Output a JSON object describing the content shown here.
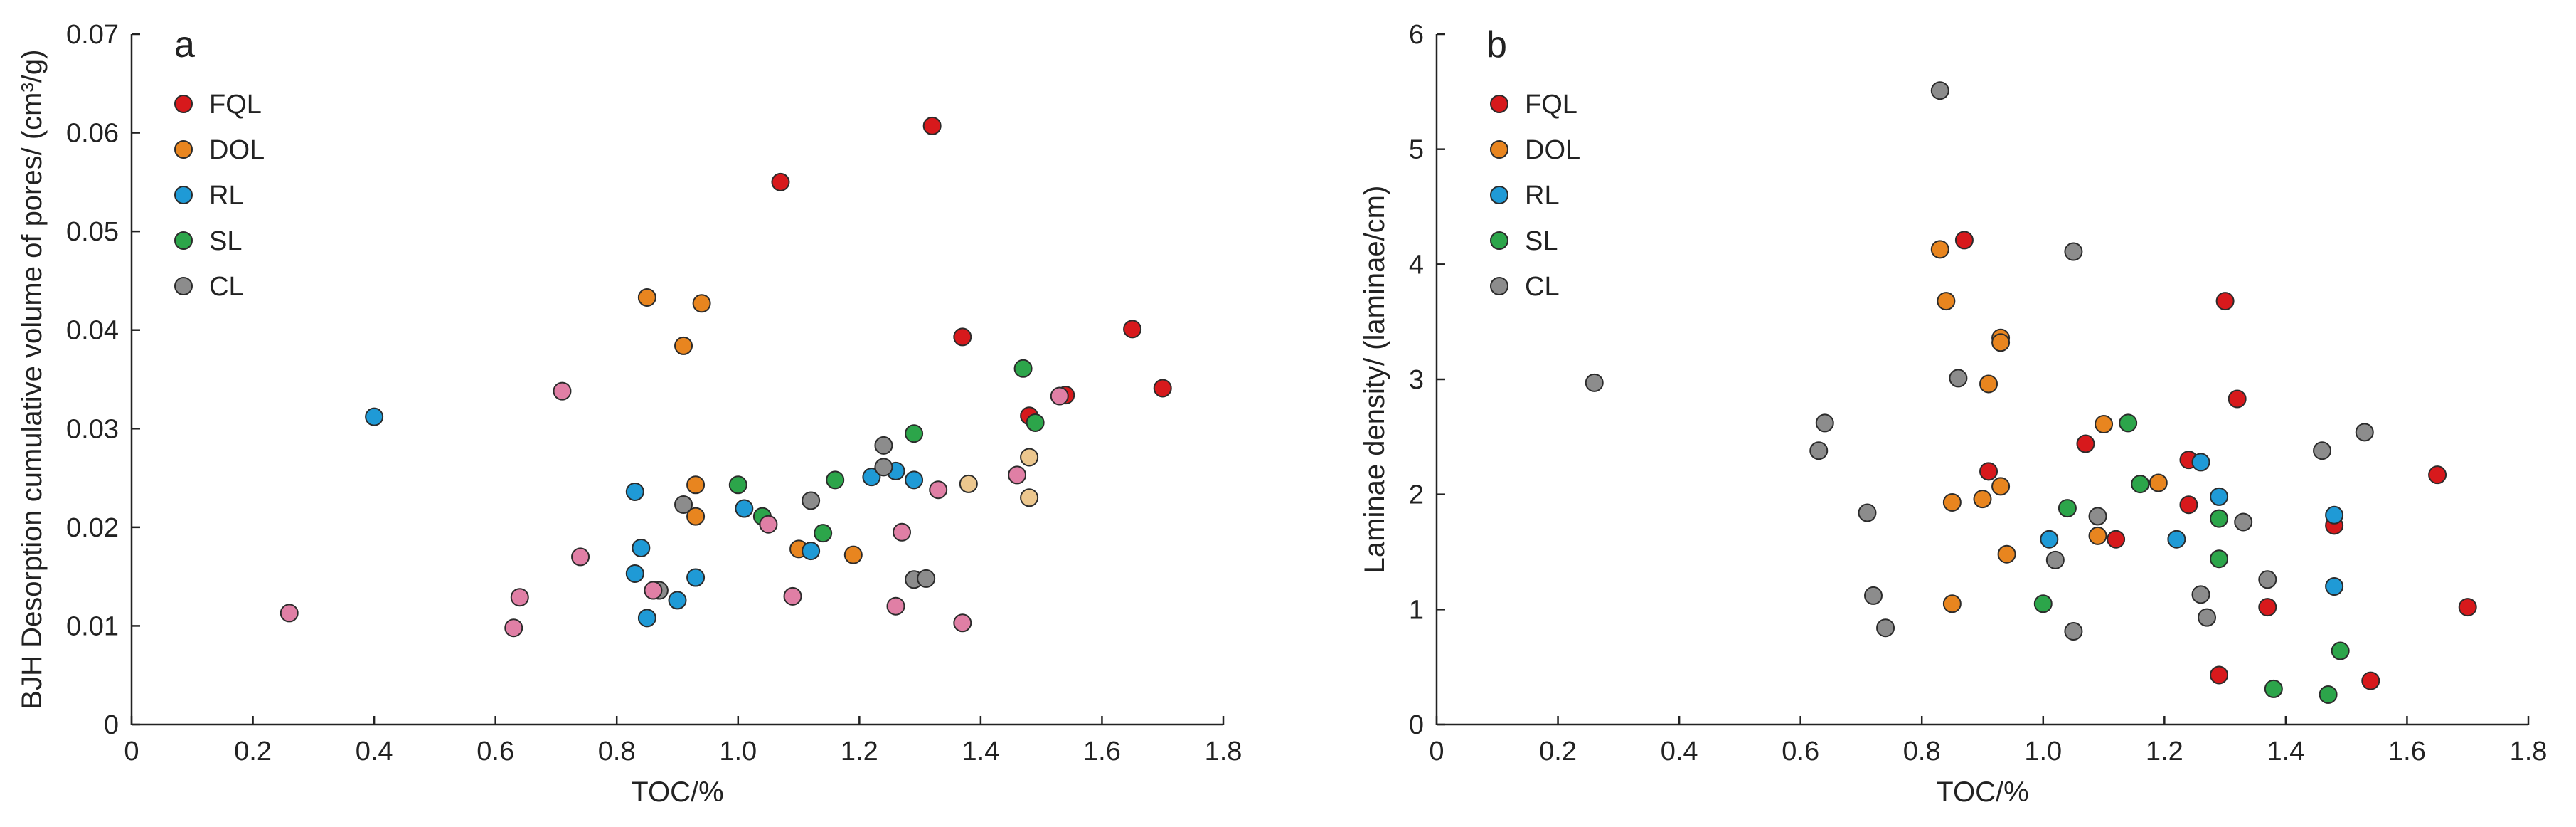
{
  "colors": {
    "FQL": "#d7191c",
    "DOL": "#e8851f",
    "RL": "#1f9ad6",
    "SL": "#2ca54a",
    "CL": "#8c8c8c",
    "pink": "#e07fa5",
    "tan": "#ecc78e"
  },
  "chart_data": [
    {
      "type": "scatter",
      "panel": "a",
      "xlabel": "TOC/%",
      "ylabel": "BJH Desorption cumulative volume of pores/ (cm³/g)",
      "xlim": [
        0,
        1.8
      ],
      "ylim": [
        0,
        0.07
      ],
      "xticks": [
        0,
        0.2,
        0.4,
        0.6,
        0.8,
        1.0,
        1.2,
        1.4,
        1.6,
        1.8
      ],
      "xtick_labels": [
        "0",
        "0.2",
        "0.4",
        "0.6",
        "0.8",
        "1.0",
        "1.2",
        "1.4",
        "1.6",
        "1.8"
      ],
      "yticks": [
        0,
        0.01,
        0.02,
        0.03,
        0.04,
        0.05,
        0.06,
        0.07
      ],
      "ytick_labels": [
        "0",
        "0.01",
        "0.02",
        "0.03",
        "0.04",
        "0.05",
        "0.06",
        "0.07"
      ],
      "legend": [
        "FQL",
        "DOL",
        "RL",
        "SL",
        "CL"
      ],
      "legend_position": "top-left",
      "series": [
        {
          "name": "FQL",
          "color_key": "FQL",
          "points": [
            [
              1.07,
              0.055
            ],
            [
              1.32,
              0.0607
            ],
            [
              1.37,
              0.0393
            ],
            [
              1.48,
              0.0313
            ],
            [
              1.54,
              0.0334
            ],
            [
              1.65,
              0.0401
            ],
            [
              1.7,
              0.0341
            ]
          ]
        },
        {
          "name": "DOL",
          "color_key": "DOL",
          "points": [
            [
              0.85,
              0.0433
            ],
            [
              0.94,
              0.0427
            ],
            [
              0.91,
              0.0384
            ],
            [
              0.93,
              0.0243
            ],
            [
              0.93,
              0.0211
            ],
            [
              1.1,
              0.0178
            ],
            [
              1.19,
              0.0172
            ]
          ]
        },
        {
          "name": "RL",
          "color_key": "RL",
          "points": [
            [
              0.4,
              0.0312
            ],
            [
              0.83,
              0.0236
            ],
            [
              0.84,
              0.0179
            ],
            [
              0.83,
              0.0153
            ],
            [
              0.85,
              0.0108
            ],
            [
              0.9,
              0.0126
            ],
            [
              0.93,
              0.0149
            ],
            [
              1.01,
              0.0219
            ],
            [
              1.12,
              0.0176
            ],
            [
              1.22,
              0.0251
            ],
            [
              1.26,
              0.0257
            ],
            [
              1.29,
              0.0248
            ]
          ]
        },
        {
          "name": "SL",
          "color_key": "SL",
          "points": [
            [
              1.0,
              0.0243
            ],
            [
              1.04,
              0.0211
            ],
            [
              1.14,
              0.0194
            ],
            [
              1.16,
              0.0248
            ],
            [
              1.29,
              0.0295
            ],
            [
              1.47,
              0.0361
            ],
            [
              1.49,
              0.0306
            ]
          ]
        },
        {
          "name": "CL",
          "color_key": "CL",
          "points": [
            [
              0.87,
              0.0136
            ],
            [
              0.91,
              0.0223
            ],
            [
              1.12,
              0.0227
            ],
            [
              1.24,
              0.0283
            ],
            [
              1.24,
              0.0261
            ],
            [
              1.29,
              0.0147
            ],
            [
              1.31,
              0.0148
            ]
          ]
        },
        {
          "name": "",
          "color_key": "pink",
          "points": [
            [
              0.26,
              0.0113
            ],
            [
              0.63,
              0.0098
            ],
            [
              0.64,
              0.0129
            ],
            [
              0.71,
              0.0338
            ],
            [
              0.74,
              0.017
            ],
            [
              0.86,
              0.0136
            ],
            [
              1.05,
              0.0203
            ],
            [
              1.09,
              0.013
            ],
            [
              1.26,
              0.012
            ],
            [
              1.27,
              0.0195
            ],
            [
              1.33,
              0.0238
            ],
            [
              1.37,
              0.0103
            ],
            [
              1.46,
              0.0253
            ],
            [
              1.53,
              0.0333
            ]
          ]
        },
        {
          "name": "",
          "color_key": "tan",
          "points": [
            [
              1.38,
              0.0244
            ],
            [
              1.48,
              0.0271
            ],
            [
              1.48,
              0.023
            ]
          ]
        }
      ]
    },
    {
      "type": "scatter",
      "panel": "b",
      "xlabel": "TOC/%",
      "ylabel": "Laminae density/ (laminae/cm)",
      "xlim": [
        0,
        1.8
      ],
      "ylim": [
        0,
        6
      ],
      "xticks": [
        0,
        0.2,
        0.4,
        0.6,
        0.8,
        1.0,
        1.2,
        1.4,
        1.6,
        1.8
      ],
      "xtick_labels": [
        "0",
        "0.2",
        "0.4",
        "0.6",
        "0.8",
        "1.0",
        "1.2",
        "1.4",
        "1.6",
        "1.8"
      ],
      "yticks": [
        0,
        1,
        2,
        3,
        4,
        5,
        6
      ],
      "ytick_labels": [
        "0",
        "1",
        "2",
        "3",
        "4",
        "5",
        "6"
      ],
      "legend": [
        "FQL",
        "DOL",
        "RL",
        "SL",
        "CL"
      ],
      "legend_position": "top-left",
      "series": [
        {
          "name": "FQL",
          "color_key": "FQL",
          "points": [
            [
              0.87,
              4.21
            ],
            [
              0.91,
              2.2
            ],
            [
              1.07,
              2.44
            ],
            [
              1.12,
              1.61
            ],
            [
              1.24,
              1.91
            ],
            [
              1.24,
              2.3
            ],
            [
              1.3,
              3.68
            ],
            [
              1.32,
              2.83
            ],
            [
              1.29,
              0.43
            ],
            [
              1.37,
              1.02
            ],
            [
              1.48,
              1.73
            ],
            [
              1.54,
              0.38
            ],
            [
              1.65,
              2.17
            ],
            [
              1.7,
              1.02
            ]
          ]
        },
        {
          "name": "DOL",
          "color_key": "DOL",
          "points": [
            [
              0.83,
              4.13
            ],
            [
              0.84,
              3.68
            ],
            [
              0.85,
              1.93
            ],
            [
              0.85,
              1.05
            ],
            [
              0.9,
              1.96
            ],
            [
              0.91,
              2.96
            ],
            [
              0.93,
              3.36
            ],
            [
              0.93,
              3.32
            ],
            [
              0.93,
              2.07
            ],
            [
              0.94,
              1.48
            ],
            [
              1.09,
              1.64
            ],
            [
              1.1,
              2.61
            ],
            [
              1.19,
              2.1
            ]
          ]
        },
        {
          "name": "RL",
          "color_key": "RL",
          "points": [
            [
              1.01,
              1.61
            ],
            [
              1.22,
              1.61
            ],
            [
              1.26,
              2.28
            ],
            [
              1.29,
              1.98
            ],
            [
              1.48,
              1.82
            ],
            [
              1.48,
              1.2
            ]
          ]
        },
        {
          "name": "SL",
          "color_key": "SL",
          "points": [
            [
              1.0,
              1.05
            ],
            [
              1.04,
              1.88
            ],
            [
              1.14,
              2.62
            ],
            [
              1.16,
              2.09
            ],
            [
              1.29,
              1.79
            ],
            [
              1.29,
              1.44
            ],
            [
              1.38,
              0.31
            ],
            [
              1.47,
              0.26
            ],
            [
              1.49,
              0.64
            ]
          ]
        },
        {
          "name": "CL",
          "color_key": "CL",
          "points": [
            [
              0.26,
              2.97
            ],
            [
              0.63,
              2.38
            ],
            [
              0.64,
              2.62
            ],
            [
              0.71,
              1.84
            ],
            [
              0.72,
              1.12
            ],
            [
              0.74,
              0.84
            ],
            [
              0.83,
              5.51
            ],
            [
              0.86,
              3.01
            ],
            [
              1.02,
              1.43
            ],
            [
              1.05,
              4.11
            ],
            [
              1.05,
              0.81
            ],
            [
              1.09,
              1.81
            ],
            [
              1.26,
              1.13
            ],
            [
              1.27,
              0.93
            ],
            [
              1.33,
              1.76
            ],
            [
              1.37,
              1.26
            ],
            [
              1.46,
              2.38
            ],
            [
              1.53,
              2.54
            ]
          ]
        }
      ]
    }
  ]
}
